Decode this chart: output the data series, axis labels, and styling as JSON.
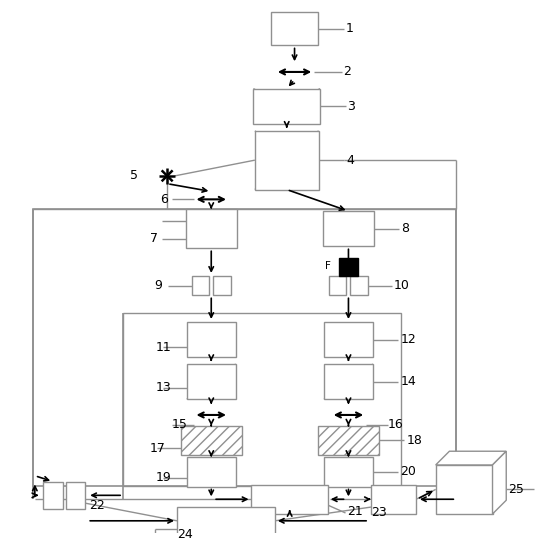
{
  "fig_w": 5.45,
  "fig_h": 5.42,
  "dpi": 100,
  "gc": "#909090",
  "dc": "#000000"
}
